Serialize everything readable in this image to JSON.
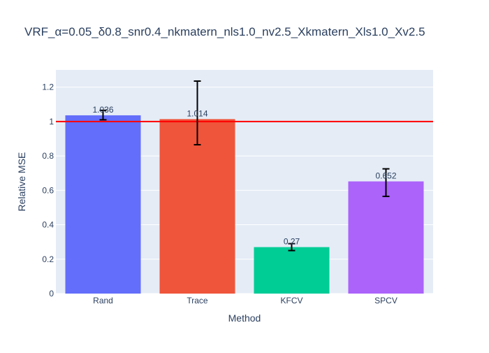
{
  "chart_data": {
    "type": "bar",
    "title": "VRF_α=0.05_δ0.8_snr0.4_nkmatern_nls1.0_nv2.5_Xkmatern_Xls1.0_Xv2.5",
    "xlabel": "Method",
    "ylabel": "Relative MSE",
    "categories": [
      "Rand",
      "Trace",
      "KFCV",
      "SPCV"
    ],
    "values": [
      1.036,
      1.014,
      0.27,
      0.652
    ],
    "value_labels": [
      "1.036",
      "1.014",
      "0.27",
      "0.652"
    ],
    "error_low": [
      1.01,
      0.865,
      0.25,
      0.565
    ],
    "error_high": [
      1.065,
      1.235,
      0.29,
      0.725
    ],
    "colors": [
      "#636efa",
      "#ef553b",
      "#00cc96",
      "#ab63fa"
    ],
    "reference_line": {
      "value": 1,
      "color": "#ff0000"
    },
    "ylim": [
      0,
      1.3
    ],
    "yticks": [
      0,
      0.2,
      0.4,
      0.6,
      0.8,
      1,
      1.2
    ],
    "ytick_labels": [
      "0",
      "0.2",
      "0.4",
      "0.6",
      "0.8",
      "1",
      "1.2"
    ],
    "grid": true,
    "plot_background": "#e5ecf6"
  }
}
